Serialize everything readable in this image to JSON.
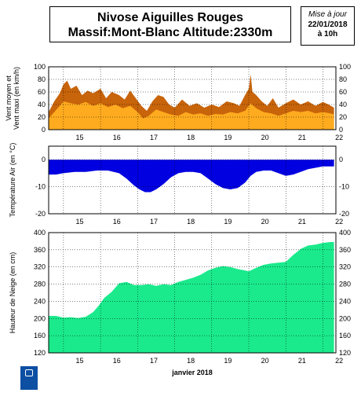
{
  "header": {
    "title_line1": "Nivose Aiguilles Rouges",
    "title_line2": "Massif:Mont-Blanc Altitude:2330m",
    "update_label": "Mise à jour",
    "update_date": "22/01/2018",
    "update_time": "à 10h"
  },
  "logo": {
    "text": "METEO FRANCE"
  },
  "colors": {
    "wind_max": "#c8640a",
    "wind_mean": "#ffab1f",
    "temperature": "#0000e0",
    "snow": "#1aea8c",
    "grid": "#000000"
  },
  "chart_data": [
    {
      "type": "area",
      "name": "wind",
      "ylabel": "Vent moyen et\nVent maxi (en km/h)",
      "ylim": [
        0,
        100
      ],
      "yticks": [
        0,
        20,
        40,
        60,
        80,
        100
      ],
      "x_range": [
        14.6,
        22.35
      ],
      "x_ticks": [
        15,
        16,
        17,
        18,
        19,
        20,
        21,
        22
      ],
      "series": [
        {
          "key": "max",
          "x": [
            14.6,
            14.75,
            14.9,
            15.0,
            15.1,
            15.2,
            15.35,
            15.5,
            15.65,
            15.8,
            16.0,
            16.15,
            16.3,
            16.5,
            16.65,
            16.8,
            16.95,
            17.1,
            17.25,
            17.4,
            17.55,
            17.7,
            17.85,
            18.0,
            18.2,
            18.4,
            18.6,
            18.8,
            19.0,
            19.2,
            19.4,
            19.6,
            19.75,
            19.9,
            20.0,
            20.05,
            20.1,
            20.2,
            20.35,
            20.5,
            20.65,
            20.8,
            21.0,
            21.2,
            21.4,
            21.6,
            21.8,
            22.0,
            22.15,
            22.3
          ],
          "values": [
            28,
            45,
            58,
            72,
            78,
            65,
            70,
            55,
            62,
            58,
            65,
            50,
            60,
            55,
            48,
            62,
            50,
            38,
            30,
            45,
            55,
            52,
            40,
            35,
            48,
            38,
            42,
            35,
            40,
            36,
            45,
            42,
            38,
            55,
            65,
            88,
            60,
            55,
            45,
            38,
            50,
            35,
            42,
            48,
            40,
            45,
            38,
            44,
            40,
            35
          ]
        },
        {
          "key": "mean",
          "x": [
            14.6,
            14.75,
            14.9,
            15.0,
            15.2,
            15.4,
            15.6,
            15.8,
            16.0,
            16.2,
            16.4,
            16.6,
            16.8,
            17.0,
            17.15,
            17.3,
            17.5,
            17.7,
            17.9,
            18.1,
            18.3,
            18.5,
            18.7,
            18.9,
            19.1,
            19.3,
            19.5,
            19.7,
            19.9,
            20.05,
            20.2,
            20.4,
            20.6,
            20.8,
            21.0,
            21.2,
            21.4,
            21.6,
            21.8,
            22.0,
            22.2,
            22.3
          ],
          "values": [
            18,
            28,
            38,
            45,
            42,
            40,
            44,
            38,
            42,
            36,
            40,
            34,
            38,
            28,
            18,
            22,
            32,
            28,
            24,
            22,
            28,
            24,
            26,
            22,
            25,
            24,
            28,
            26,
            30,
            42,
            34,
            28,
            26,
            22,
            26,
            30,
            28,
            30,
            26,
            28,
            26,
            24
          ]
        }
      ]
    },
    {
      "type": "area",
      "name": "temperature",
      "ylabel": "Température Air (en °C)",
      "ylim": [
        -20,
        5
      ],
      "yticks": [
        -20,
        -10,
        0
      ],
      "x_range": [
        14.6,
        22.35
      ],
      "x_ticks": [
        15,
        16,
        17,
        18,
        19,
        20,
        21,
        22
      ],
      "series": [
        {
          "key": "temp",
          "x": [
            14.6,
            14.8,
            15.0,
            15.3,
            15.6,
            15.9,
            16.2,
            16.5,
            16.7,
            16.9,
            17.05,
            17.2,
            17.35,
            17.5,
            17.7,
            17.9,
            18.1,
            18.3,
            18.5,
            18.7,
            18.9,
            19.1,
            19.3,
            19.5,
            19.7,
            19.9,
            20.05,
            20.2,
            20.4,
            20.6,
            20.8,
            21.0,
            21.2,
            21.4,
            21.6,
            21.8,
            22.0,
            22.2,
            22.3
          ],
          "values": [
            -5.5,
            -5.5,
            -5,
            -4.5,
            -4.5,
            -4,
            -4,
            -5,
            -7,
            -9.5,
            -11,
            -12,
            -12,
            -11,
            -9,
            -6.5,
            -5,
            -4.5,
            -4.5,
            -5,
            -7,
            -9,
            -10.5,
            -11,
            -10.5,
            -8.5,
            -6,
            -4.5,
            -4,
            -4,
            -5,
            -6,
            -5.5,
            -4.5,
            -3.5,
            -3,
            -2.5,
            -2.5,
            -2.5
          ]
        }
      ]
    },
    {
      "type": "area",
      "name": "snow",
      "ylabel": "Hauteur de Neige (en cm)",
      "ylim": [
        120,
        400
      ],
      "yticks": [
        120,
        160,
        200,
        240,
        280,
        320,
        360,
        400
      ],
      "x_range": [
        14.6,
        22.35
      ],
      "x_ticks": [
        15,
        16,
        17,
        18,
        19,
        20,
        21,
        22
      ],
      "xlabel": "janvier 2018",
      "series": [
        {
          "key": "height",
          "x": [
            14.6,
            14.8,
            15.0,
            15.2,
            15.4,
            15.6,
            15.8,
            15.95,
            16.1,
            16.3,
            16.5,
            16.7,
            16.9,
            17.1,
            17.3,
            17.5,
            17.7,
            17.9,
            18.1,
            18.3,
            18.5,
            18.7,
            18.9,
            19.1,
            19.3,
            19.5,
            19.7,
            19.9,
            20.0,
            20.2,
            20.4,
            20.6,
            20.8,
            21.0,
            21.2,
            21.4,
            21.6,
            21.8,
            22.0,
            22.2,
            22.3
          ],
          "values": [
            206,
            206,
            202,
            203,
            201,
            204,
            215,
            230,
            248,
            262,
            282,
            285,
            278,
            278,
            280,
            276,
            280,
            278,
            285,
            290,
            295,
            302,
            312,
            318,
            322,
            320,
            315,
            312,
            310,
            318,
            325,
            328,
            330,
            332,
            348,
            362,
            370,
            372,
            376,
            378,
            378
          ]
        }
      ]
    }
  ]
}
